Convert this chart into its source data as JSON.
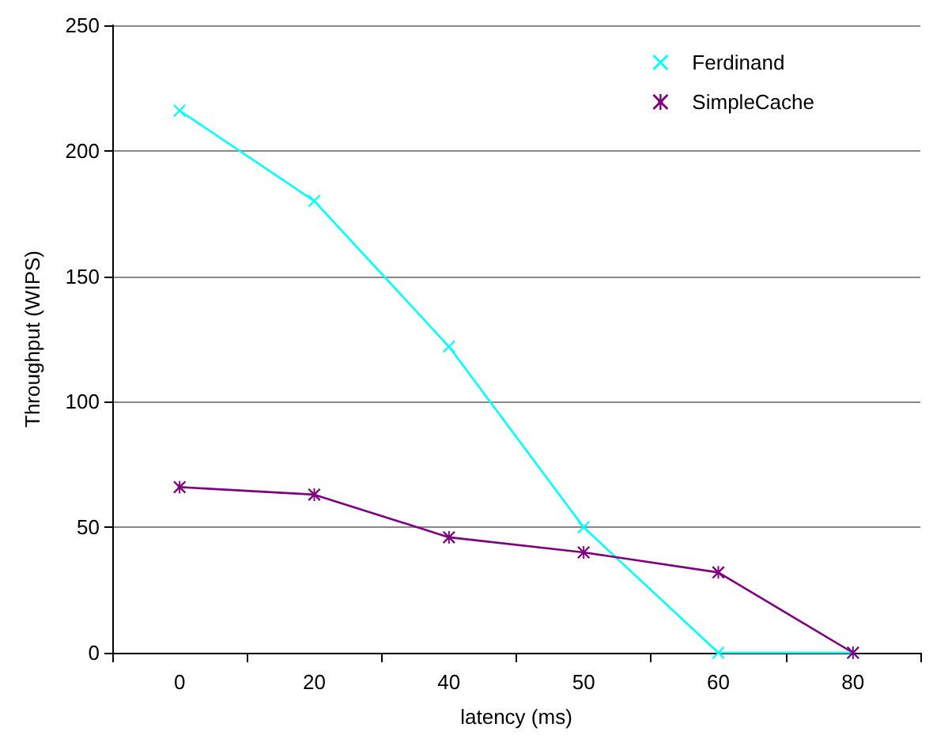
{
  "chart_data": {
    "type": "line",
    "xlabel": "latency (ms)",
    "ylabel": "Throughput (WIPS)",
    "categories": [
      "0",
      "20",
      "40",
      "50",
      "60",
      "80"
    ],
    "series": [
      {
        "name": "Ferdinand",
        "color": "#00ffff",
        "marker": "cross",
        "values": [
          216,
          180,
          122,
          50,
          0,
          0
        ]
      },
      {
        "name": "SimpleCache",
        "color": "#800080",
        "marker": "star",
        "values": [
          66,
          63,
          46,
          40,
          32,
          0
        ]
      }
    ],
    "ylim": [
      0,
      250
    ],
    "yticks": [
      0,
      50,
      100,
      150,
      200,
      250
    ],
    "grid": "y",
    "legend": "top right"
  }
}
